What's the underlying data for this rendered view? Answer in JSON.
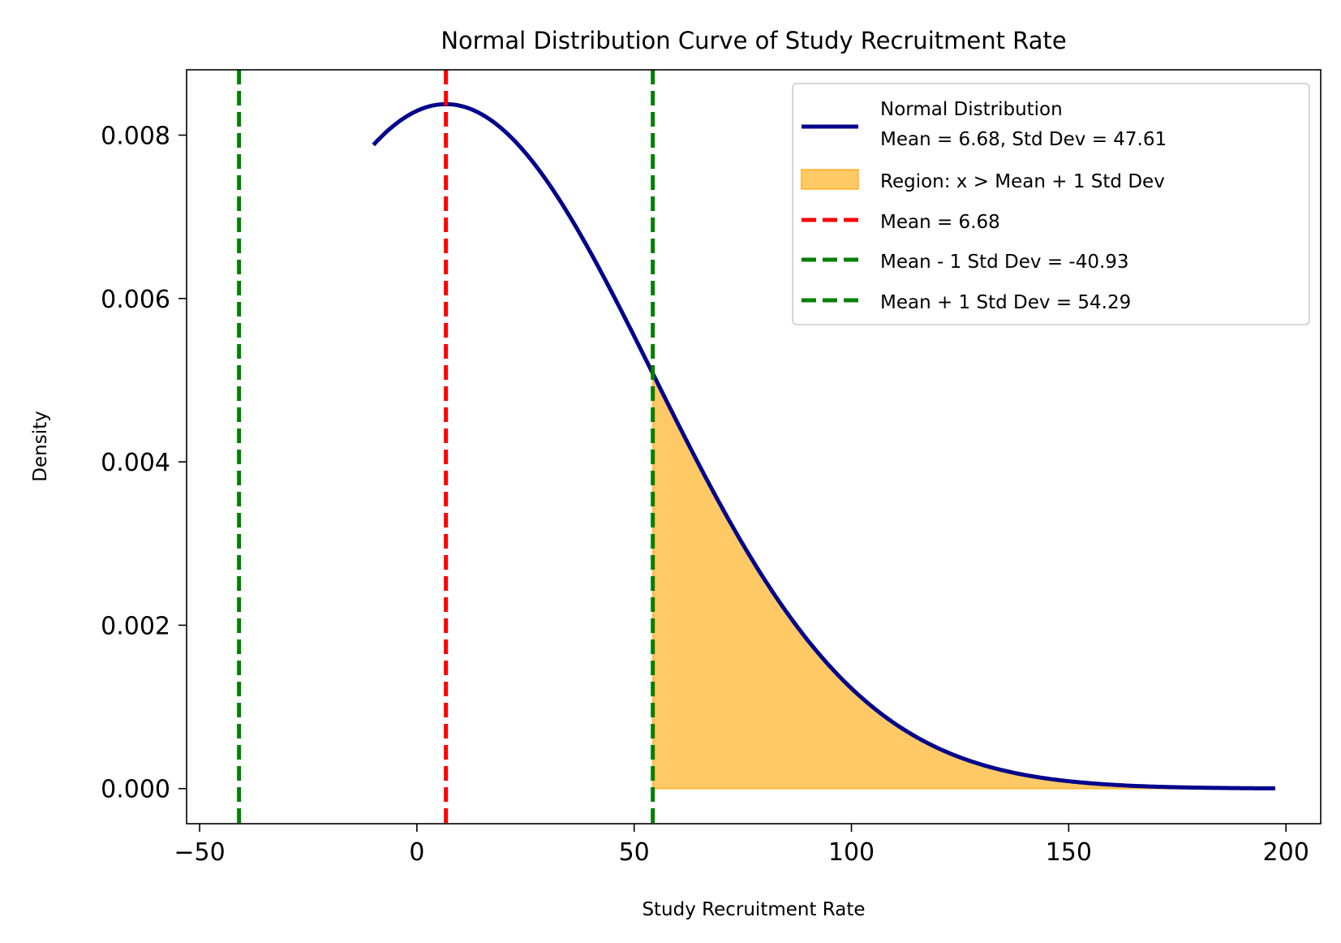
{
  "chart_data": {
    "type": "line",
    "title": "Normal Distribution Curve of Study Recruitment Rate",
    "xlabel": "Study Recruitment Rate",
    "ylabel": "Density",
    "xlim": [
      -53,
      208
    ],
    "ylim": [
      -0.00043,
      0.0088
    ],
    "x_ticks": [
      -50,
      0,
      50,
      100,
      150,
      200
    ],
    "x_tick_labels": [
      "−50",
      "0",
      "50",
      "100",
      "150",
      "200"
    ],
    "y_ticks": [
      0.0,
      0.002,
      0.004,
      0.006,
      0.008
    ],
    "y_tick_labels": [
      "0.000",
      "0.002",
      "0.004",
      "0.006",
      "0.008"
    ],
    "grid": false,
    "legend_position": "top-right",
    "distribution": {
      "mean": 6.68,
      "std": 47.61,
      "x_range": [
        -10,
        197.5
      ]
    },
    "series": [
      {
        "name": "Normal Distribution\nMean = 6.68, Std Dev = 47.61",
        "kind": "curve",
        "color": "#00008b",
        "label_lines": [
          "Normal Distribution",
          "Mean = 6.68, Std Dev = 47.61"
        ]
      },
      {
        "name": "Region: x > Mean + 1 Std Dev",
        "kind": "fill",
        "x_from": 54.29,
        "color": "#ffa500",
        "opacity": 0.6,
        "label_lines": [
          "Region: x > Mean + 1 Std Dev"
        ]
      },
      {
        "name": "Mean = 6.68",
        "kind": "vline",
        "x": 6.68,
        "color": "#ff0000",
        "label_lines": [
          "Mean = 6.68"
        ]
      },
      {
        "name": "Mean - 1 Std Dev = -40.93",
        "kind": "vline",
        "x": -40.93,
        "color": "#008000",
        "label_lines": [
          "Mean - 1 Std Dev = -40.93"
        ]
      },
      {
        "name": "Mean + 1 Std Dev = 54.29",
        "kind": "vline",
        "x": 54.29,
        "color": "#008000",
        "label_lines": [
          "Mean + 1 Std Dev = 54.29"
        ]
      }
    ]
  }
}
